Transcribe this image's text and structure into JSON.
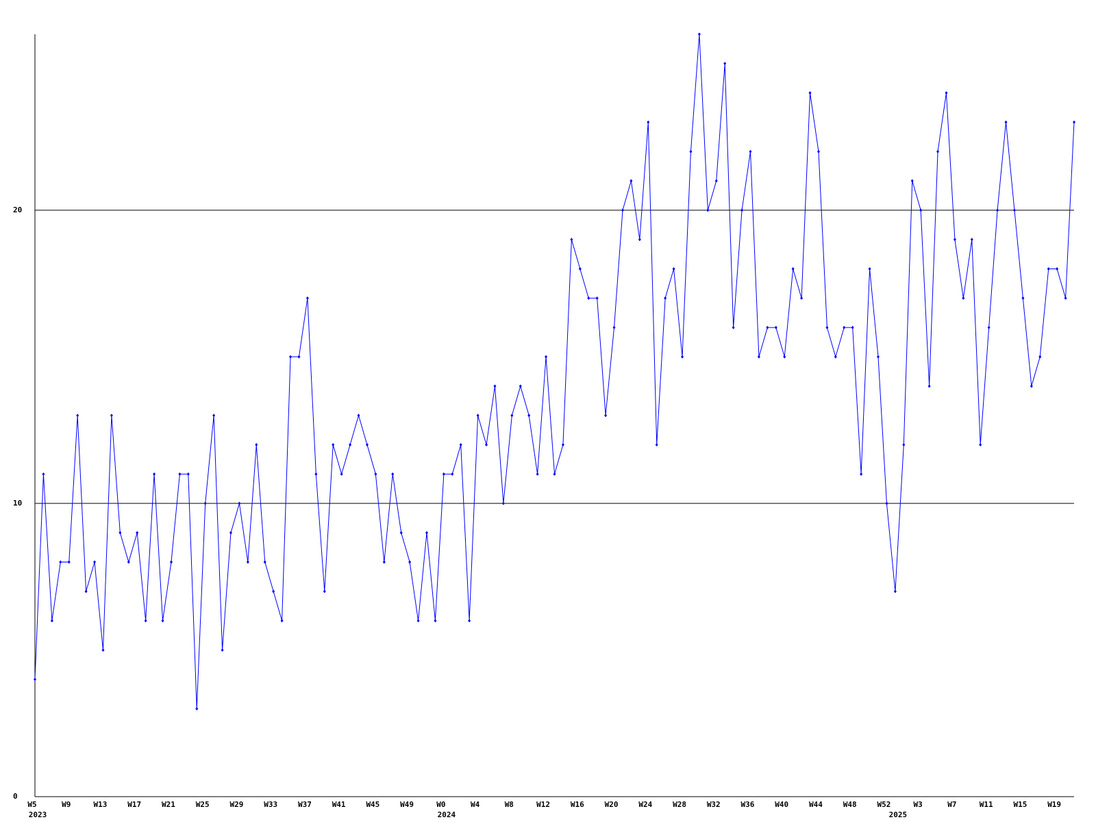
{
  "chart_data": {
    "type": "line",
    "color": "#0000ff",
    "grid": true,
    "ylim": [
      0,
      26
    ],
    "yticks": [
      0,
      10,
      20
    ],
    "values": [
      4,
      11,
      6,
      8,
      8,
      13,
      7,
      8,
      5,
      13,
      9,
      8,
      9,
      6,
      11,
      6,
      8,
      11,
      11,
      3,
      10,
      13,
      5,
      9,
      10,
      8,
      12,
      8,
      7,
      6,
      15,
      15,
      17,
      11,
      7,
      12,
      11,
      12,
      13,
      12,
      11,
      8,
      11,
      9,
      8,
      6,
      9,
      6,
      11,
      11,
      12,
      6,
      13,
      12,
      14,
      10,
      13,
      14,
      13,
      11,
      15,
      11,
      12,
      19,
      18,
      17,
      17,
      13,
      16,
      20,
      21,
      19,
      23,
      12,
      17,
      18,
      15,
      22,
      26,
      20,
      21,
      25,
      16,
      20,
      22,
      15,
      16,
      16,
      15,
      18,
      17,
      24,
      22,
      16,
      15,
      16,
      16,
      11,
      18,
      15,
      10,
      7,
      12,
      21,
      20,
      14,
      22,
      24,
      19,
      17,
      19,
      12,
      16,
      20,
      23,
      20,
      17,
      14,
      15,
      18,
      18,
      17,
      23
    ],
    "categories": [
      "W5",
      null,
      null,
      null,
      "W9",
      null,
      null,
      null,
      "W13",
      null,
      null,
      null,
      "W17",
      null,
      null,
      null,
      "W21",
      null,
      null,
      null,
      "W25",
      null,
      null,
      null,
      "W29",
      null,
      null,
      null,
      "W33",
      null,
      null,
      null,
      "W37",
      null,
      null,
      null,
      "W41",
      null,
      null,
      null,
      "W45",
      null,
      null,
      null,
      "W49",
      null,
      null,
      null,
      "W0",
      null,
      null,
      null,
      "W4",
      null,
      null,
      null,
      "W8",
      null,
      null,
      null,
      "W12",
      null,
      null,
      null,
      "W16",
      null,
      null,
      null,
      "W20",
      null,
      null,
      null,
      "W24",
      null,
      null,
      null,
      "W28",
      null,
      null,
      null,
      "W32",
      null,
      null,
      null,
      "W36",
      null,
      null,
      null,
      "W40",
      null,
      null,
      null,
      "W44",
      null,
      null,
      null,
      "W48",
      null,
      null,
      null,
      "W52",
      null,
      null,
      null,
      "W3",
      null,
      null,
      null,
      "W7",
      null,
      null,
      null,
      "W11",
      null,
      null,
      null,
      "W15",
      null,
      null,
      null,
      "W19",
      null,
      null
    ],
    "years": [
      "2023",
      null,
      null,
      null,
      null,
      null,
      null,
      null,
      null,
      null,
      null,
      null,
      null,
      null,
      null,
      null,
      null,
      null,
      null,
      null,
      null,
      null,
      null,
      null,
      null,
      null,
      null,
      null,
      null,
      null,
      null,
      null,
      null,
      null,
      null,
      null,
      null,
      null,
      null,
      null,
      null,
      null,
      null,
      null,
      null,
      null,
      null,
      null,
      "2024",
      null,
      null,
      null,
      null,
      null,
      null,
      null,
      null,
      null,
      null,
      null,
      null,
      null,
      null,
      null,
      null,
      null,
      null,
      null,
      null,
      null,
      null,
      null,
      null,
      null,
      null,
      null,
      null,
      null,
      null,
      null,
      null,
      null,
      null,
      null,
      null,
      null,
      null,
      null,
      null,
      null,
      null,
      null,
      null,
      null,
      null,
      null,
      null,
      null,
      null,
      null,
      null,
      "2025",
      null,
      null,
      null,
      null,
      null,
      null,
      null,
      null,
      null,
      null,
      null,
      null,
      null,
      null,
      null,
      null,
      null,
      null,
      null,
      null,
      null
    ]
  }
}
